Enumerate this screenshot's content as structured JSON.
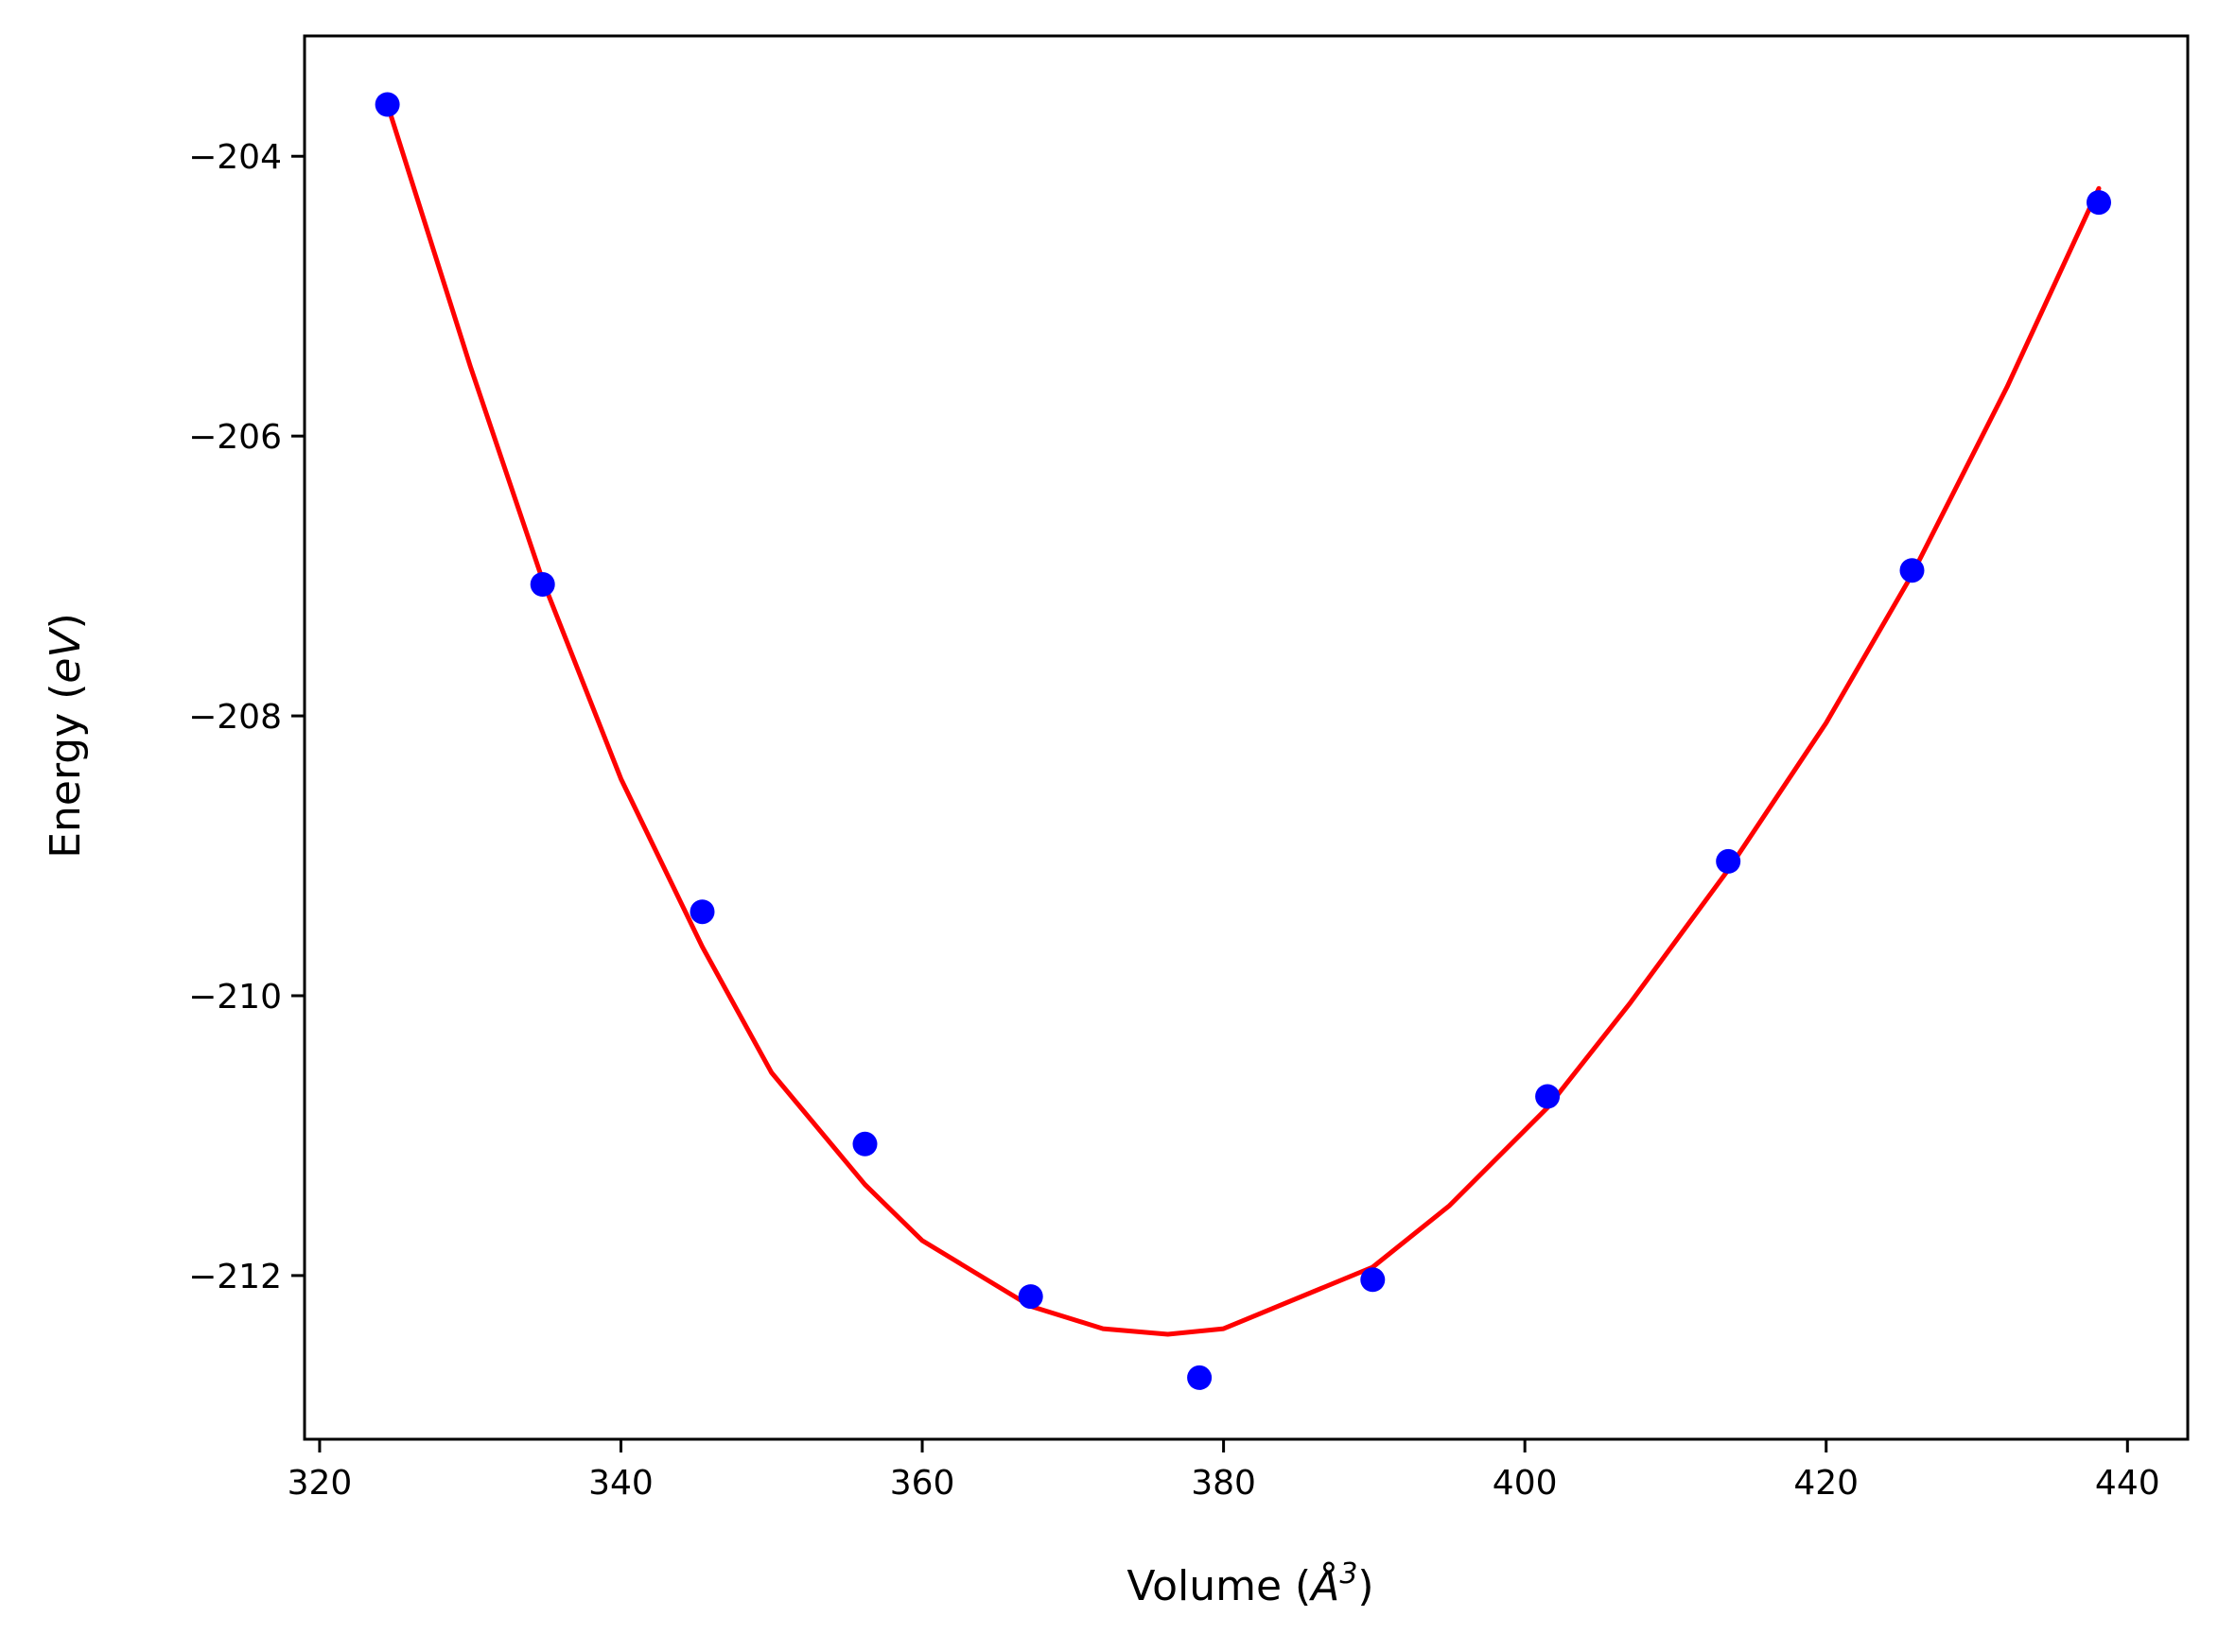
{
  "chart_data": {
    "type": "scatter",
    "title": "",
    "xlabel": {
      "prefix": "Volume (",
      "unit_symbol": "Å",
      "unit_power": "3",
      "suffix": ")"
    },
    "ylabel": {
      "prefix": "Energy (",
      "unit": "eV",
      "suffix": ")"
    },
    "xlim": [
      319,
      444
    ],
    "ylim": [
      -213.17,
      -203.14
    ],
    "xticks": [
      320,
      340,
      360,
      380,
      400,
      420,
      440
    ],
    "xtick_labels": [
      "320",
      "340",
      "360",
      "380",
      "400",
      "420",
      "440"
    ],
    "yticks": [
      -204,
      -206,
      -208,
      -210,
      -212
    ],
    "ytick_labels": [
      "−204",
      "−206",
      "−208",
      "−210",
      "−212"
    ],
    "grid": false,
    "series": [
      {
        "kind": "points",
        "color": "#0000ff",
        "x": [
          324.5,
          334.8,
          345.4,
          356.2,
          367.2,
          378.4,
          389.9,
          401.5,
          413.5,
          425.7,
          438.1
        ],
        "y": [
          -203.63,
          -207.06,
          -209.4,
          -211.06,
          -212.15,
          -212.73,
          -212.03,
          -210.72,
          -209.04,
          -206.96,
          -204.33
        ]
      },
      {
        "kind": "fit-curve",
        "color": "#ff0000",
        "x": [
          324.5,
          330,
          334.8,
          340,
          345.4,
          350,
          356.2,
          360,
          367.2,
          372,
          376.3,
          380,
          389.9,
          395,
          401.5,
          407,
          413.5,
          420,
          425.7,
          432,
          438.1
        ],
        "y": [
          -203.63,
          -205.5,
          -207.03,
          -208.45,
          -209.65,
          -210.55,
          -211.35,
          -211.75,
          -212.22,
          -212.38,
          -212.42,
          -212.38,
          -211.94,
          -211.5,
          -210.8,
          -210.05,
          -209.1,
          -208.05,
          -206.99,
          -205.65,
          -204.23
        ]
      }
    ]
  }
}
